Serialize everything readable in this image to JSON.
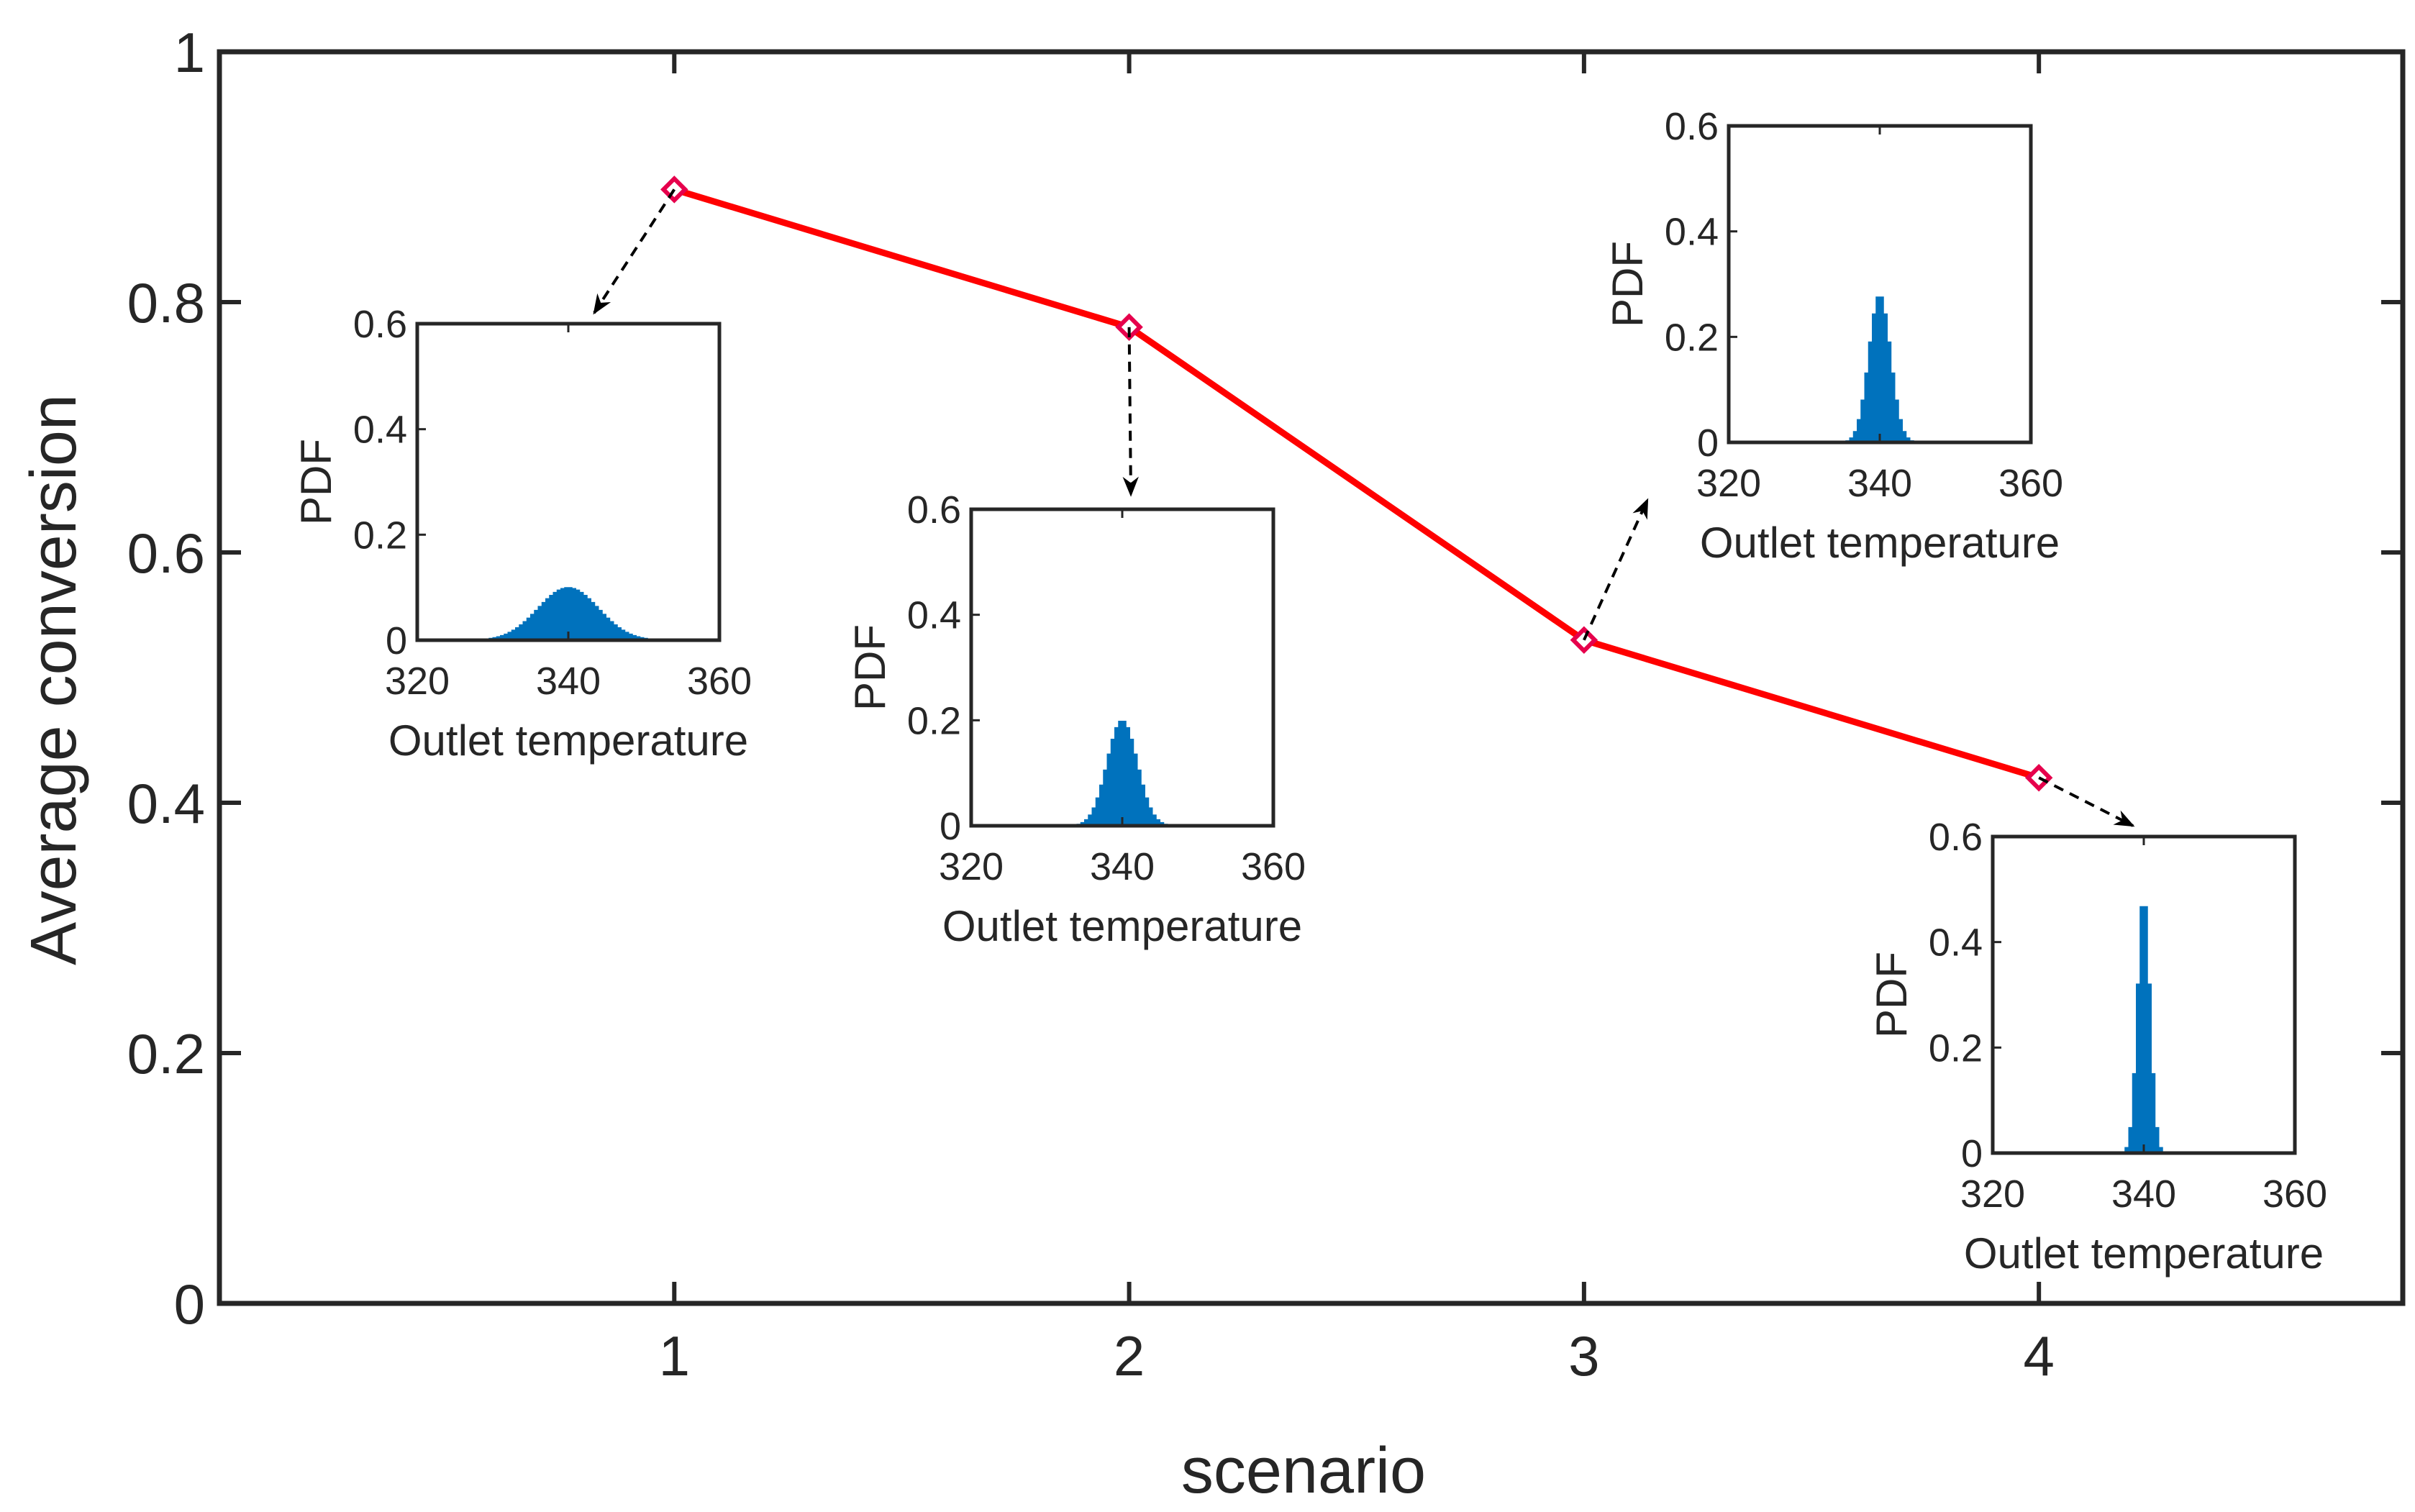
{
  "chart_data": {
    "type": "line",
    "xlabel": "scenario",
    "ylabel": "Average conversion",
    "xlim": [
      0,
      4.8
    ],
    "ylim": [
      0,
      1
    ],
    "xticks": [
      "1",
      "2",
      "3",
      "4"
    ],
    "yticks": [
      "0",
      "0.2",
      "0.4",
      "0.6",
      "0.8",
      "1"
    ],
    "series": [
      {
        "name": "Average conversion",
        "color": "#ff0000",
        "marker_color": "#e6004c",
        "marker": "diamond",
        "x": [
          1,
          2,
          3,
          4
        ],
        "values": [
          0.89,
          0.78,
          0.53,
          0.42
        ]
      }
    ],
    "insets": [
      {
        "scenario": 1,
        "type": "histogram",
        "xlabel": "Outlet temperature",
        "ylabel": "PDF",
        "xlim": [
          320,
          360
        ],
        "ylim": [
          0,
          0.6
        ],
        "xticks": [
          "320",
          "340",
          "360"
        ],
        "yticks": [
          "0",
          "0.2",
          "0.4",
          "0.6"
        ],
        "mean": 340,
        "peak_pdf": 0.1,
        "color": "#0072bd"
      },
      {
        "scenario": 2,
        "type": "histogram",
        "xlabel": "Outlet temperature",
        "ylabel": "PDF",
        "xlim": [
          320,
          360
        ],
        "ylim": [
          0,
          0.6
        ],
        "xticks": [
          "320",
          "340",
          "360"
        ],
        "yticks": [
          "0",
          "0.2",
          "0.4",
          "0.6"
        ],
        "mean": 340,
        "peak_pdf": 0.2,
        "color": "#0072bd"
      },
      {
        "scenario": 3,
        "type": "histogram",
        "xlabel": "Outlet temperature",
        "ylabel": "PDF",
        "xlim": [
          320,
          360
        ],
        "ylim": [
          0,
          0.6
        ],
        "xticks": [
          "320",
          "340",
          "360"
        ],
        "yticks": [
          "0",
          "0.2",
          "0.4",
          "0.6"
        ],
        "mean": 340,
        "peak_pdf": 0.28,
        "color": "#0072bd"
      },
      {
        "scenario": 4,
        "type": "histogram",
        "xlabel": "Outlet temperature",
        "ylabel": "PDF",
        "xlim": [
          320,
          360
        ],
        "ylim": [
          0,
          0.6
        ],
        "xticks": [
          "320",
          "340",
          "360"
        ],
        "yticks": [
          "0",
          "0.2",
          "0.4",
          "0.6"
        ],
        "mean": 340,
        "peak_pdf": 0.49,
        "color": "#0072bd"
      }
    ]
  }
}
